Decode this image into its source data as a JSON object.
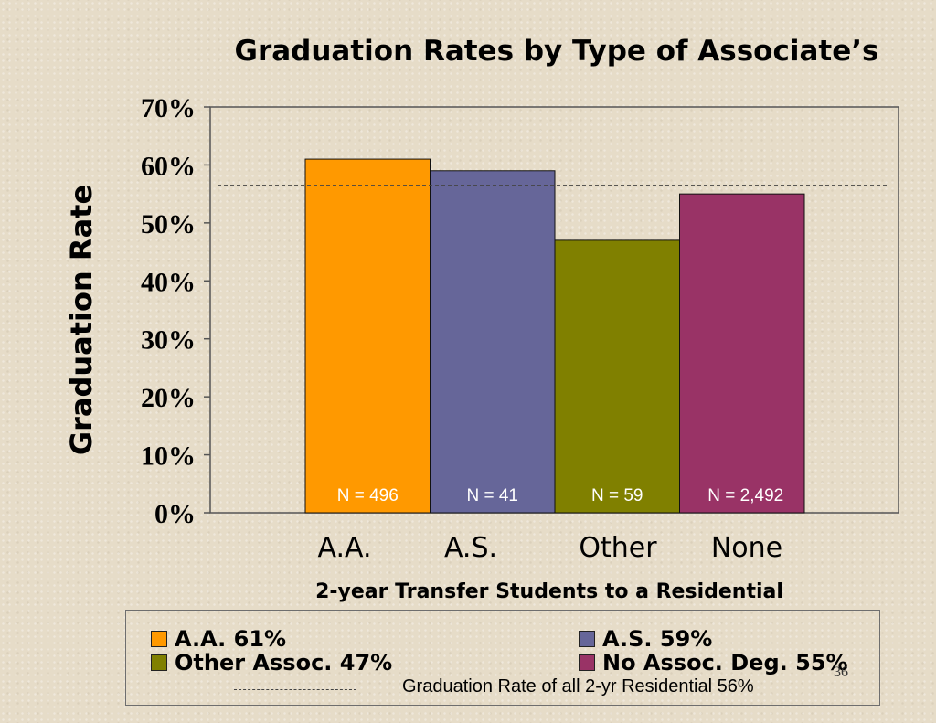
{
  "chart_data": {
    "type": "bar",
    "title": "Graduation Rates by Type of Associate’s",
    "xlabel": "2-year Transfer Students to a Residential",
    "ylabel": "Graduation Rate",
    "categories": [
      "A.A.",
      "A.S.",
      "Other",
      "None"
    ],
    "values": [
      61,
      59,
      47,
      55
    ],
    "n_labels": [
      "N = 496",
      "N = 41",
      "N =  59",
      "N = 2,492"
    ],
    "ylim": [
      0,
      70
    ],
    "yticks": [
      0,
      10,
      20,
      30,
      40,
      50,
      60,
      70
    ],
    "ytick_labels": [
      "0%",
      "10%",
      "20%",
      "30%",
      "40%",
      "50%",
      "60%",
      "70%"
    ],
    "reference_line": {
      "value": 56.5,
      "style": "dashed"
    },
    "colors": [
      "#ff9900",
      "#666699",
      "#808000",
      "#993366"
    ],
    "grid": false,
    "legend_placement": "bottom"
  },
  "legend": {
    "items": [
      {
        "label": "A.A.  61%",
        "color": "#ff9900"
      },
      {
        "label": "A.S. 59%",
        "color": "#666699"
      },
      {
        "label": "Other Assoc.  47%",
        "color": "#808000"
      },
      {
        "label": "No Assoc. Deg.  55%",
        "color": "#993366"
      }
    ],
    "avg_label": "Graduation Rate of all 2-yr Residential  56%"
  },
  "page_number": "36"
}
